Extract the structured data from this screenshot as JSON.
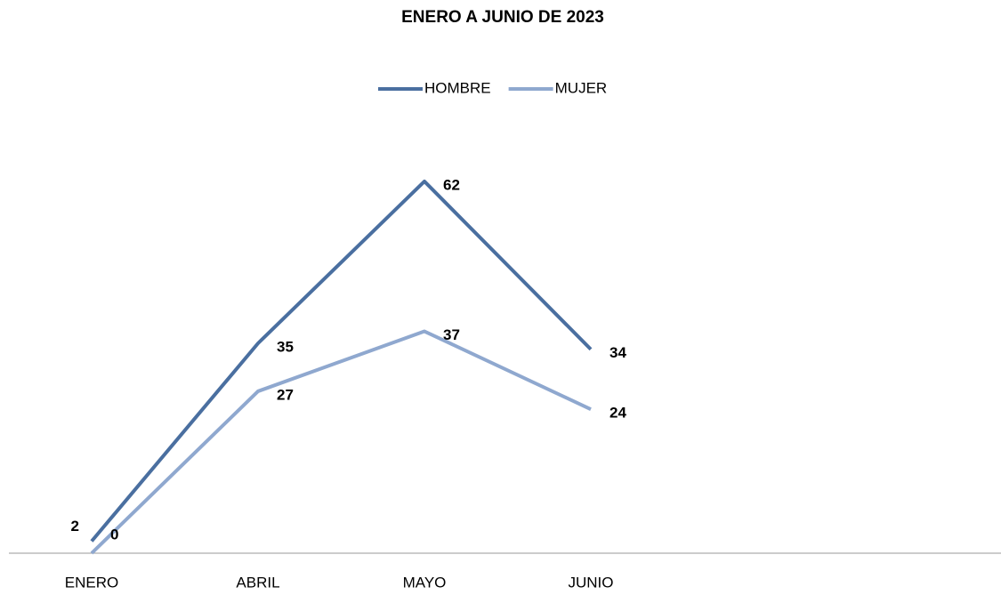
{
  "chart_data": {
    "type": "line",
    "title": "ENERO A JUNIO DE 2023",
    "categories": [
      "ENERO",
      "ABRIL",
      "MAYO",
      "JUNIO"
    ],
    "series": [
      {
        "name": "HOMBRE",
        "color": "#4a6fa0",
        "values": [
          2,
          35,
          62,
          34
        ]
      },
      {
        "name": "MUJER",
        "color": "#8fa8cf",
        "values": [
          0,
          27,
          37,
          24
        ]
      }
    ],
    "ylim": [
      0,
      70
    ],
    "legend": "top"
  }
}
